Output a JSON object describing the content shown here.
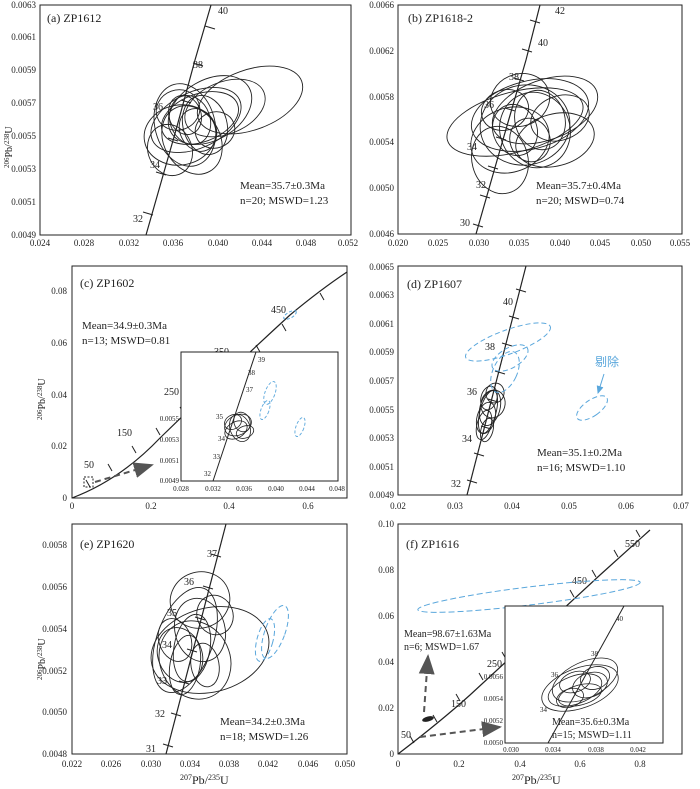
{
  "panels": [
    {
      "id": "a",
      "label": "(a) ZP1612",
      "xlim": [
        0.024,
        0.052
      ],
      "ylim": [
        0.0049,
        0.0063
      ],
      "xticks": [
        "0.024",
        "0.028",
        "0.032",
        "0.036",
        "0.040",
        "0.044",
        "0.048",
        "0.052"
      ],
      "yticks": [
        "0.0049",
        "0.0051",
        "0.0053",
        "0.0055",
        "0.0057",
        "0.0059",
        "0.0061",
        "0.0063"
      ],
      "concordia_ages": [
        "32",
        "34",
        "36",
        "38",
        "40"
      ],
      "result_line1": "Mean=35.7±0.3Ma",
      "result_line2": "n=20; MSWD=1.23"
    },
    {
      "id": "b",
      "label": "(b) ZP1618-2",
      "xlim": [
        0.02,
        0.055
      ],
      "ylim": [
        0.0046,
        0.0066
      ],
      "xticks": [
        "0.020",
        "0.025",
        "0.030",
        "0.035",
        "0.040",
        "0.045",
        "0.050",
        "0.055"
      ],
      "yticks": [
        "0.0046",
        "0.0050",
        "0.0054",
        "0.0058",
        "0.0062",
        "0.0066"
      ],
      "concordia_ages": [
        "30",
        "32",
        "34",
        "36",
        "38",
        "40",
        "42"
      ],
      "result_line1": "Mean=35.7±0.4Ma",
      "result_line2": "n=20; MSWD=0.74"
    },
    {
      "id": "c",
      "label": "(c) ZP1602",
      "xlim": [
        0,
        0.7
      ],
      "ylim": [
        0,
        0.09
      ],
      "xticks": [
        "0",
        "0.2",
        "0.4",
        "0.6"
      ],
      "yticks": [
        "0",
        "0.02",
        "0.04",
        "0.06",
        "0.08"
      ],
      "concordia_ages": [
        "50",
        "150",
        "250",
        "350",
        "450"
      ],
      "result_line1": "Mean=34.9±0.3Ma",
      "result_line2": "n=13; MSWD=0.81",
      "inset": {
        "xticks": [
          "0.028",
          "0.032",
          "0.036",
          "0.040",
          "0.044",
          "0.048"
        ],
        "yticks": [
          "0.0049",
          "0.0051",
          "0.0053",
          "0.0055"
        ],
        "ages": [
          "32",
          "33",
          "34",
          "35",
          "37",
          "38",
          "39"
        ]
      }
    },
    {
      "id": "d",
      "label": "(d) ZP1607",
      "xlim": [
        0.02,
        0.07
      ],
      "ylim": [
        0.0049,
        0.0065
      ],
      "xticks": [
        "0.02",
        "0.03",
        "0.04",
        "0.05",
        "0.06",
        "0.07"
      ],
      "yticks": [
        "0.0049",
        "0.0051",
        "0.0053",
        "0.0055",
        "0.0057",
        "0.0059",
        "0.0061",
        "0.0063",
        "0.0065"
      ],
      "concordia_ages": [
        "32",
        "34",
        "36",
        "38",
        "40"
      ],
      "result_line1": "Mean=35.1±0.2Ma",
      "result_line2": "n=16; MSWD=1.10",
      "excluded_note": "剔除"
    },
    {
      "id": "e",
      "label": "(e) ZP1620",
      "xlim": [
        0.022,
        0.05
      ],
      "ylim": [
        0.0048,
        0.0059
      ],
      "xticks": [
        "0.022",
        "0.026",
        "0.030",
        "0.034",
        "0.038",
        "0.042",
        "0.046",
        "0.050"
      ],
      "yticks": [
        "0.0048",
        "0.0050",
        "0.0052",
        "0.0054",
        "0.0056",
        "0.0058"
      ],
      "concordia_ages": [
        "31",
        "32",
        "33",
        "34",
        "35",
        "36",
        "37"
      ],
      "result_line1": "Mean=34.2±0.3Ma",
      "result_line2": "n=18; MSWD=1.26"
    },
    {
      "id": "f",
      "label": "(f) ZP1616",
      "xlim": [
        0,
        0.9
      ],
      "ylim": [
        0,
        0.1
      ],
      "xticks": [
        "0",
        "0.2",
        "0.4",
        "0.6",
        "0.8"
      ],
      "yticks": [
        "0",
        "0.02",
        "0.04",
        "0.06",
        "0.08",
        "0.10"
      ],
      "concordia_ages": [
        "50",
        "150",
        "250",
        "350",
        "450",
        "550"
      ],
      "result_line1": "Mean=35.6±0.3Ma",
      "result_line2": "n=15; MSWD=1.11",
      "old_group_line1": "Mean=98.67±1.63Ma",
      "old_group_line2": "n=6;  MSWD=1.67",
      "inset": {
        "xticks": [
          "0.030",
          "0.034",
          "0.038",
          "0.042"
        ],
        "yticks": [
          "0.0050",
          "0.0052",
          "0.0054",
          "0.0056"
        ],
        "ages": [
          "34",
          "36",
          "38",
          "40"
        ]
      }
    }
  ],
  "axis_labels": {
    "y_label": "206Pb/238U",
    "x_label": "207Pb/235U"
  },
  "colors": {
    "ink": "#222222",
    "excluded": "#5aa7dc",
    "arrow": "#555555"
  }
}
